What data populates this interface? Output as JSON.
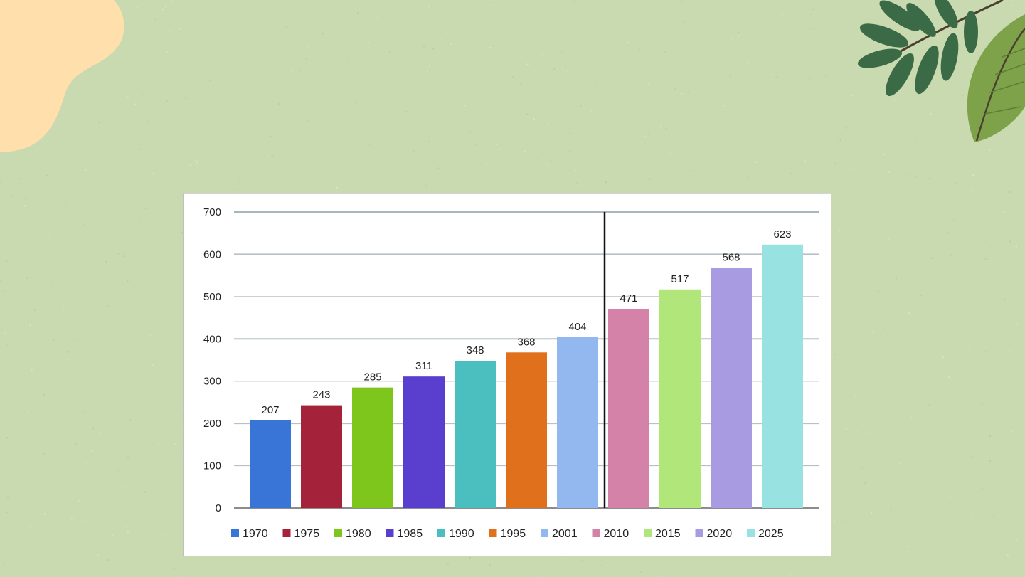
{
  "chart_data": {
    "type": "bar",
    "categories": [
      "1970",
      "1975",
      "1980",
      "1985",
      "1990",
      "1995",
      "2001",
      "2010",
      "2015",
      "2020",
      "2025"
    ],
    "values": [
      207,
      243,
      285,
      311,
      348,
      368,
      404,
      471,
      517,
      568,
      623
    ],
    "colors": [
      "#3875d7",
      "#a4223a",
      "#7ec61c",
      "#5a3fcf",
      "#4bbfbf",
      "#e0701c",
      "#93b8ef",
      "#d482a8",
      "#b1e67a",
      "#a99be2",
      "#98e2e2"
    ],
    "ylim": [
      0,
      700
    ],
    "yticks": [
      0,
      100,
      200,
      300,
      400,
      500,
      600,
      700
    ],
    "grid": true,
    "legend_position": "bottom",
    "divider_after_category": "2001"
  },
  "decoration": {
    "background_color": "#c9d9b0",
    "blob_color": "#ffe0ad",
    "leaf_dark_color": "#3b6b46",
    "leaf_light_color": "#7ea24a"
  }
}
